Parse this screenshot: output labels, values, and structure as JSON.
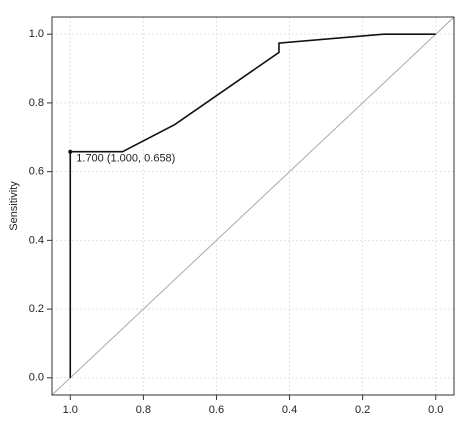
{
  "chart_data": {
    "type": "line",
    "y_label": "Sensitivity",
    "x": [
      1.0,
      1.0,
      0.857,
      0.714,
      0.429,
      0.429,
      0.143,
      0.0
    ],
    "series": [
      {
        "color": "#111111",
        "values": [
          0.0,
          0.658,
          0.658,
          0.737,
          0.947,
          0.974,
          1.0,
          1.0
        ]
      }
    ],
    "xlim": [
      1.05,
      -0.05
    ],
    "ylim": [
      -0.05,
      1.05
    ],
    "xticks": [
      {
        "value": 1.0,
        "label": "1.0"
      },
      {
        "value": 0.8,
        "label": "0.8"
      },
      {
        "value": 0.6,
        "label": "0.6"
      },
      {
        "value": 0.4,
        "label": "0.4"
      },
      {
        "value": 0.2,
        "label": "0.2"
      },
      {
        "value": 0.0,
        "label": "0.0"
      }
    ],
    "yticks": [
      {
        "value": 0.0,
        "label": "0.0"
      },
      {
        "value": 0.2,
        "label": "0.2"
      },
      {
        "value": 0.4,
        "label": "0.4"
      },
      {
        "value": 0.6,
        "label": "0.6"
      },
      {
        "value": 0.8,
        "label": "0.8"
      },
      {
        "value": 1.0,
        "label": "1.0"
      }
    ],
    "grid": true,
    "diagonal_color": "#aaaaaa",
    "annotation": {
      "text": "1.700 (1.000, 0.658)",
      "x": 1.0,
      "y": 0.658
    }
  }
}
